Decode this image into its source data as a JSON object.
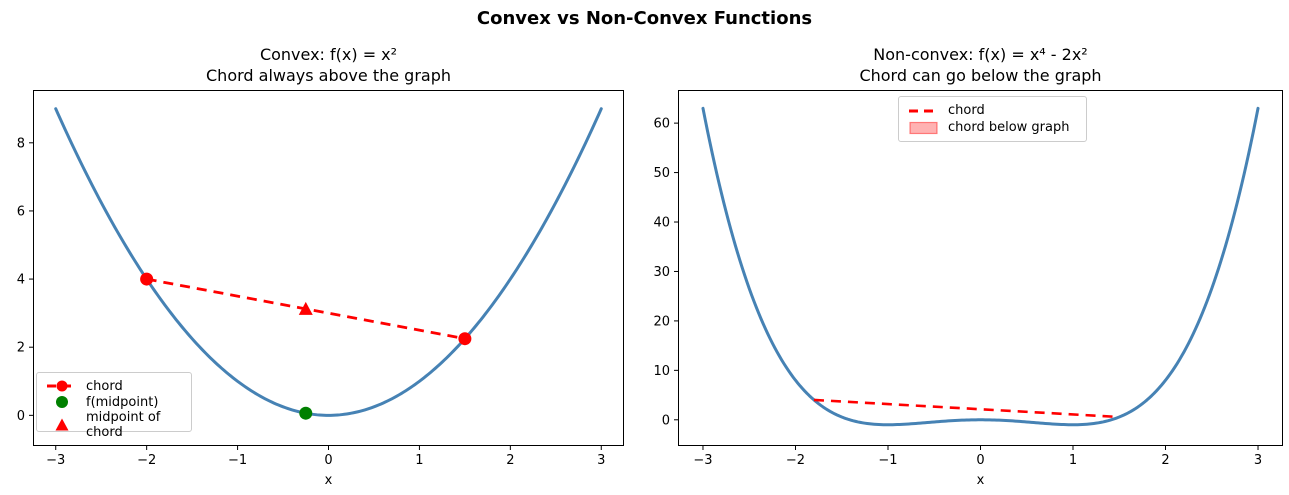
{
  "figure": {
    "suptitle": "Convex vs Non-Convex Functions",
    "background": "#ffffff"
  },
  "colors": {
    "curve": "#4682B4",
    "chord": "#FF0000",
    "f_midpoint": "#008000",
    "fill_legend": "rgba(255,0,0,0.3)",
    "fill_legend_edge": "rgba(255,0,0,0.45)",
    "axis": "#000000",
    "legend_border": "#cccccc"
  },
  "chart_data": [
    {
      "id": "convex",
      "type": "line",
      "title": "Convex: f(x) = x²",
      "subtitle": "Chord always above the graph",
      "xlabel": "x",
      "xlim": [
        -3.25,
        3.25
      ],
      "ylim": [
        -0.9,
        9.55
      ],
      "xticks": [
        -3,
        -2,
        -1,
        0,
        1,
        2,
        3
      ],
      "xtick_labels": [
        "−3",
        "−2",
        "−1",
        "0",
        "1",
        "2",
        "3"
      ],
      "yticks": [
        0,
        2,
        4,
        6,
        8
      ],
      "ytick_labels": [
        "0",
        "2",
        "4",
        "6",
        "8"
      ],
      "grid": false,
      "curve": {
        "poly": [
          0,
          0,
          1
        ],
        "domain": [
          -3,
          3
        ],
        "color": "#4682B4",
        "width": 3
      },
      "chord": {
        "points": [
          [
            -2,
            4
          ],
          [
            1.5,
            2.25
          ]
        ],
        "color": "#FF0000",
        "dash": "10 7",
        "width": 2.8,
        "endpoint_markers": true,
        "marker_radius": 6.5
      },
      "markers": [
        {
          "name": "f-midpoint",
          "shape": "circle",
          "x": -0.25,
          "y": 0.0625,
          "color": "#008000",
          "size": 13
        },
        {
          "name": "midpoint-of-chord",
          "shape": "triangle",
          "x": -0.25,
          "y": 3.125,
          "color": "#FF0000",
          "size": 14
        }
      ],
      "legend": {
        "position": "lower-left",
        "items": [
          {
            "label": "chord",
            "swatch": "line-dashed-dot",
            "color": "#FF0000"
          },
          {
            "label": "f(midpoint)",
            "swatch": "dot",
            "color": "#008000"
          },
          {
            "label": "midpoint of chord",
            "swatch": "triangle",
            "color": "#FF0000"
          }
        ]
      }
    },
    {
      "id": "nonconvex",
      "type": "line",
      "title": "Non-convex: f(x) = x⁴ - 2x²",
      "subtitle": "Chord can go below the graph",
      "xlabel": "x",
      "xlim": [
        -3.27,
        3.27
      ],
      "ylim": [
        -5.3,
        66.7
      ],
      "xticks": [
        -3,
        -2,
        -1,
        0,
        1,
        2,
        3
      ],
      "xtick_labels": [
        "−3",
        "−2",
        "−1",
        "0",
        "1",
        "2",
        "3"
      ],
      "yticks": [
        0,
        10,
        20,
        30,
        40,
        50,
        60
      ],
      "ytick_labels": [
        "0",
        "10",
        "20",
        "30",
        "40",
        "50",
        "60"
      ],
      "grid": false,
      "curve": {
        "poly": [
          0,
          0,
          -2,
          0,
          1
        ],
        "domain": [
          -3,
          3
        ],
        "color": "#4682B4",
        "width": 3
      },
      "chord": {
        "points": [
          [
            -1.8,
            4.0176
          ],
          [
            1.5,
            0.5625
          ]
        ],
        "color": "#FF0000",
        "dash": "10 7",
        "width": 2.6,
        "endpoint_markers": false,
        "marker_radius": 0
      },
      "markers": [],
      "legend": {
        "position": "upper-center",
        "items": [
          {
            "label": "chord",
            "swatch": "line-dashed",
            "color": "#FF0000"
          },
          {
            "label": "chord below graph",
            "swatch": "patch",
            "color": "rgba(255,0,0,0.3)"
          }
        ]
      }
    }
  ]
}
